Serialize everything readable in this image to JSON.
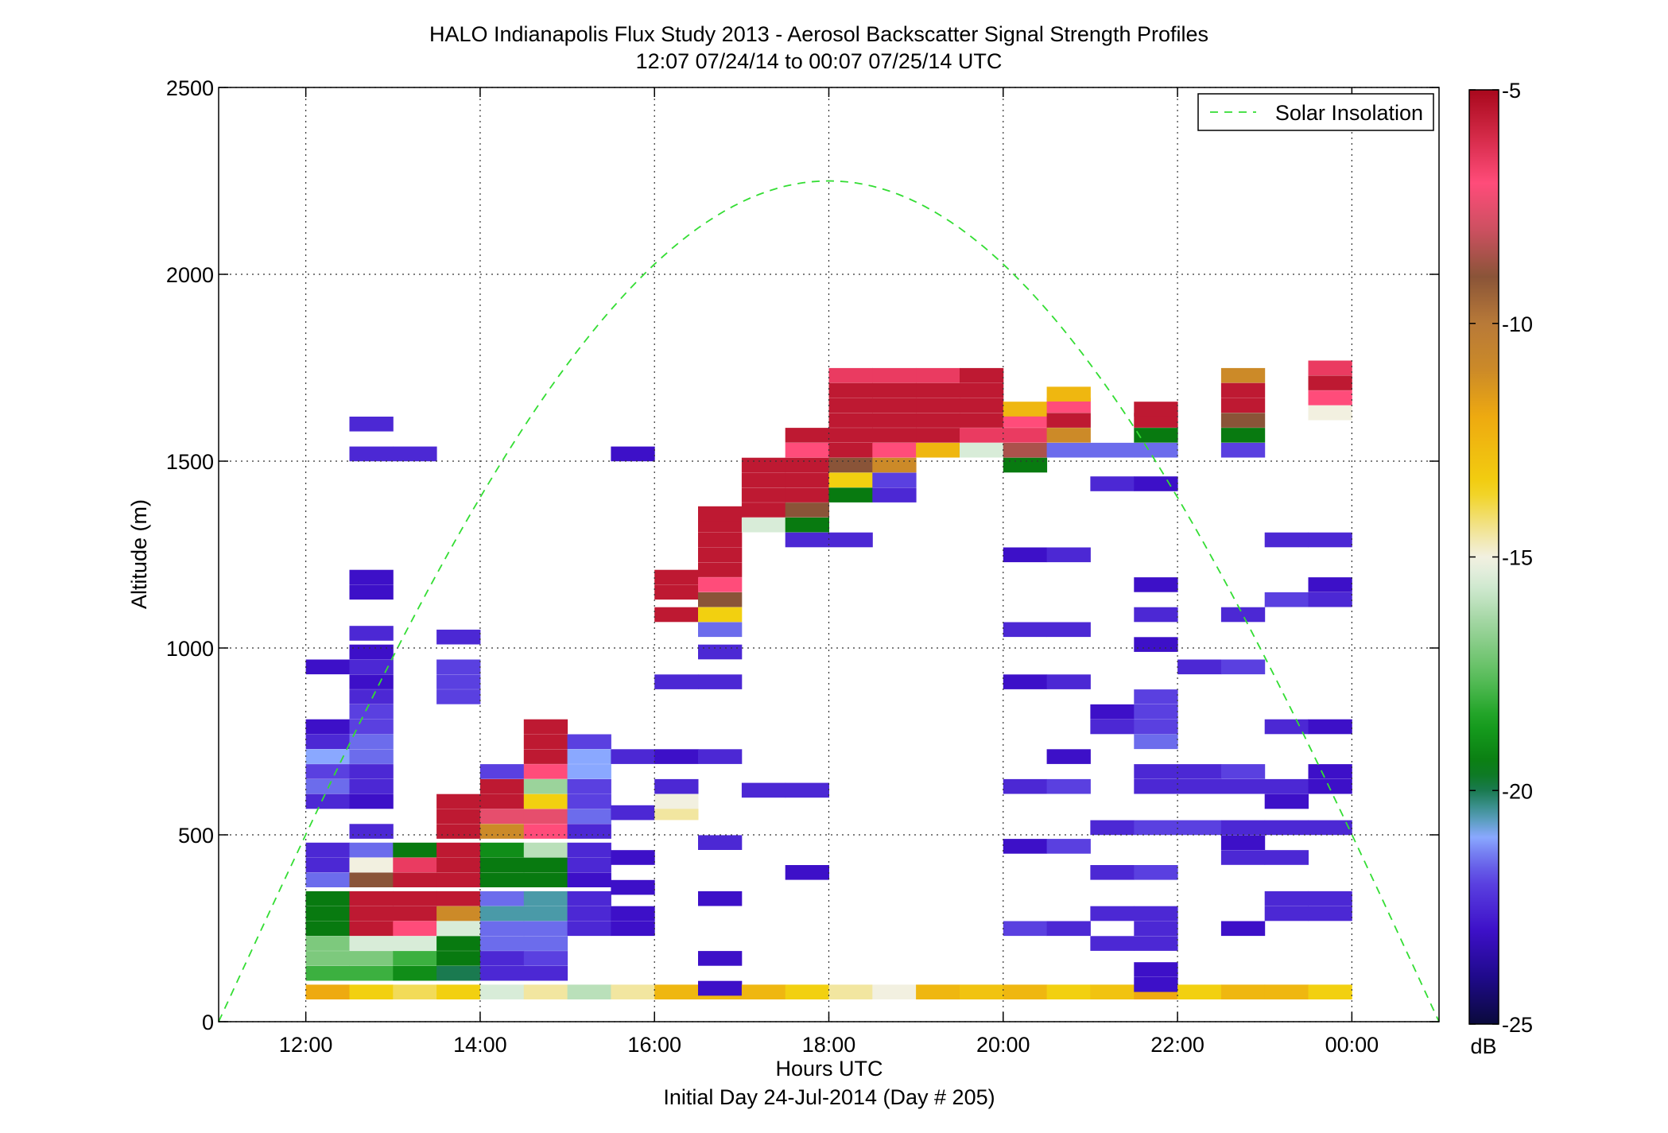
{
  "chart_data": {
    "type": "heatmap",
    "title": "HALO Indianapolis Flux Study 2013 - Aerosol Backscatter Signal Strength Profiles",
    "subtitle": "12:07 07/24/14 to 00:07 07/25/14  UTC",
    "xlabel": "Hours UTC",
    "xlabel2": "Initial Day 24-Jul-2014 (Day # 205)",
    "ylabel": "Altitude (m)",
    "xlim": [
      11,
      25
    ],
    "ylim": [
      0,
      2500
    ],
    "x_ticks": [
      12,
      14,
      16,
      18,
      20,
      22,
      24
    ],
    "x_tick_labels": [
      "12:00",
      "14:00",
      "16:00",
      "18:00",
      "20:00",
      "22:00",
      "00:00"
    ],
    "y_ticks": [
      0,
      500,
      1000,
      1500,
      2000,
      2500
    ],
    "y_tick_labels": [
      "0",
      "500",
      "1000",
      "1500",
      "2000",
      "2500"
    ],
    "grid": true,
    "legend": {
      "label": "Solar Insolation",
      "placement": "top-right",
      "color": "#33dd33"
    },
    "colorbar": {
      "label": "dB",
      "range": [
        -25,
        -5
      ],
      "ticks": [
        -5,
        -10,
        -15,
        -20,
        -25
      ],
      "tick_labels": [
        "-5",
        "-10",
        "-15",
        "-20",
        "-25"
      ]
    },
    "time_bins": {
      "start": 12.0,
      "step": 0.5
    },
    "altitude_bin_m": 38.5,
    "cells": [
      [
        0,
        80,
        -12
      ],
      [
        0,
        130,
        -18
      ],
      [
        0,
        170,
        -17
      ],
      [
        0,
        210,
        -17
      ],
      [
        0,
        250,
        -19.5
      ],
      [
        0,
        290,
        -19.5
      ],
      [
        0,
        330,
        -19.5
      ],
      [
        0,
        380,
        -21.5
      ],
      [
        0,
        420,
        -22.5
      ],
      [
        0,
        460,
        -22.5
      ],
      [
        0,
        590,
        -22.5
      ],
      [
        0,
        630,
        -21.5
      ],
      [
        0,
        670,
        -22
      ],
      [
        0,
        710,
        -21
      ],
      [
        0,
        750,
        -22.5
      ],
      [
        0,
        790,
        -23
      ],
      [
        0,
        950,
        -23
      ],
      [
        1,
        80,
        -13.5
      ],
      [
        1,
        130,
        -18
      ],
      [
        1,
        170,
        -17
      ],
      [
        1,
        210,
        -15.5
      ],
      [
        1,
        250,
        -5.5
      ],
      [
        1,
        290,
        -5.5
      ],
      [
        1,
        330,
        -5.5
      ],
      [
        1,
        380,
        -9
      ],
      [
        1,
        420,
        -15
      ],
      [
        1,
        460,
        -21.5
      ],
      [
        1,
        510,
        -22.5
      ],
      [
        1,
        590,
        -23
      ],
      [
        1,
        630,
        -22.5
      ],
      [
        1,
        670,
        -22.5
      ],
      [
        1,
        710,
        -21.5
      ],
      [
        1,
        750,
        -21.5
      ],
      [
        1,
        790,
        -22
      ],
      [
        1,
        830,
        -22
      ],
      [
        1,
        870,
        -22.5
      ],
      [
        1,
        910,
        -23
      ],
      [
        1,
        950,
        -22.5
      ],
      [
        1,
        990,
        -23
      ],
      [
        1,
        1040,
        -22.5
      ],
      [
        1,
        1150,
        -23
      ],
      [
        1,
        1190,
        -23
      ],
      [
        1,
        1520,
        -22.5
      ],
      [
        1,
        1600,
        -22.5
      ],
      [
        2,
        80,
        -14
      ],
      [
        2,
        130,
        -19
      ],
      [
        2,
        170,
        -18
      ],
      [
        2,
        210,
        -15.5
      ],
      [
        2,
        250,
        -7
      ],
      [
        2,
        290,
        -5.5
      ],
      [
        2,
        330,
        -5.5
      ],
      [
        2,
        380,
        -5.5
      ],
      [
        2,
        420,
        -6.5
      ],
      [
        2,
        460,
        -19.5
      ],
      [
        2,
        1520,
        -22.5
      ],
      [
        3,
        80,
        -13.5
      ],
      [
        3,
        130,
        -20
      ],
      [
        3,
        170,
        -19.5
      ],
      [
        3,
        210,
        -19.5
      ],
      [
        3,
        250,
        -15.5
      ],
      [
        3,
        290,
        -11
      ],
      [
        3,
        330,
        -5.5
      ],
      [
        3,
        380,
        -5.5
      ],
      [
        3,
        420,
        -5.5
      ],
      [
        3,
        460,
        -5.5
      ],
      [
        3,
        510,
        -5.5
      ],
      [
        3,
        550,
        -5.5
      ],
      [
        3,
        590,
        -5.5
      ],
      [
        3,
        870,
        -22
      ],
      [
        3,
        910,
        -22
      ],
      [
        3,
        950,
        -22
      ],
      [
        3,
        1030,
        -22.5
      ],
      [
        4,
        80,
        -15.5
      ],
      [
        4,
        130,
        -22.5
      ],
      [
        4,
        170,
        -22.5
      ],
      [
        4,
        210,
        -21.5
      ],
      [
        4,
        250,
        -21.5
      ],
      [
        4,
        290,
        -20.5
      ],
      [
        4,
        330,
        -21.5
      ],
      [
        4,
        380,
        -19.5
      ],
      [
        4,
        420,
        -19.5
      ],
      [
        4,
        460,
        -19
      ],
      [
        4,
        510,
        -11
      ],
      [
        4,
        550,
        -7.5
      ],
      [
        4,
        590,
        -5.5
      ],
      [
        4,
        630,
        -5.5
      ],
      [
        4,
        670,
        -22
      ],
      [
        5,
        80,
        -14.5
      ],
      [
        5,
        130,
        -22.5
      ],
      [
        5,
        170,
        -22
      ],
      [
        5,
        210,
        -21.5
      ],
      [
        5,
        250,
        -21.5
      ],
      [
        5,
        290,
        -20.5
      ],
      [
        5,
        330,
        -20.5
      ],
      [
        5,
        380,
        -19.5
      ],
      [
        5,
        420,
        -19.5
      ],
      [
        5,
        460,
        -16
      ],
      [
        5,
        510,
        -7
      ],
      [
        5,
        550,
        -7.5
      ],
      [
        5,
        590,
        -13.5
      ],
      [
        5,
        630,
        -16.5
      ],
      [
        5,
        670,
        -7
      ],
      [
        5,
        710,
        -5.5
      ],
      [
        5,
        750,
        -5.5
      ],
      [
        5,
        790,
        -5.5
      ],
      [
        6,
        80,
        -16
      ],
      [
        6,
        250,
        -22.5
      ],
      [
        6,
        290,
        -22.5
      ],
      [
        6,
        330,
        -22.5
      ],
      [
        6,
        380,
        -23
      ],
      [
        6,
        420,
        -22.5
      ],
      [
        6,
        460,
        -22.5
      ],
      [
        6,
        510,
        -22.5
      ],
      [
        6,
        550,
        -21.5
      ],
      [
        6,
        590,
        -22
      ],
      [
        6,
        630,
        -22
      ],
      [
        6,
        670,
        -21
      ],
      [
        6,
        710,
        -21
      ],
      [
        6,
        750,
        -22
      ],
      [
        7,
        80,
        -14.5
      ],
      [
        7,
        250,
        -23
      ],
      [
        7,
        290,
        -23
      ],
      [
        7,
        360,
        -23
      ],
      [
        7,
        440,
        -23
      ],
      [
        7,
        560,
        -22.5
      ],
      [
        7,
        710,
        -22.5
      ],
      [
        7,
        1520,
        -23
      ],
      [
        8,
        80,
        -12.5
      ],
      [
        8,
        560,
        -14.5
      ],
      [
        8,
        590,
        -15
      ],
      [
        8,
        630,
        -22.5
      ],
      [
        8,
        710,
        -23
      ],
      [
        8,
        910,
        -22.5
      ],
      [
        8,
        1090,
        -5.5
      ],
      [
        8,
        1150,
        -5.5
      ],
      [
        8,
        1190,
        -5.5
      ],
      [
        9,
        80,
        -12.5
      ],
      [
        9,
        90,
        -23
      ],
      [
        9,
        170,
        -23
      ],
      [
        9,
        330,
        -23
      ],
      [
        9,
        480,
        -22.5
      ],
      [
        9,
        710,
        -22.5
      ],
      [
        9,
        910,
        -22.5
      ],
      [
        9,
        990,
        -22.5
      ],
      [
        9,
        1050,
        -21.5
      ],
      [
        9,
        1090,
        -13.5
      ],
      [
        9,
        1130,
        -9
      ],
      [
        9,
        1170,
        -7
      ],
      [
        9,
        1210,
        -5.5
      ],
      [
        9,
        1250,
        -5.5
      ],
      [
        9,
        1290,
        -5.5
      ],
      [
        9,
        1330,
        -5.5
      ],
      [
        9,
        1360,
        -5.5
      ],
      [
        10,
        80,
        -12.5
      ],
      [
        10,
        1330,
        -15.5
      ],
      [
        10,
        1370,
        -5.5
      ],
      [
        10,
        1410,
        -5.5
      ],
      [
        10,
        1450,
        -5.5
      ],
      [
        10,
        1490,
        -5.5
      ],
      [
        10,
        620,
        -22.5
      ],
      [
        11,
        80,
        -13.5
      ],
      [
        11,
        400,
        -23
      ],
      [
        11,
        620,
        -22.5
      ],
      [
        11,
        1290,
        -22.5
      ],
      [
        11,
        1330,
        -19.5
      ],
      [
        11,
        1370,
        -9
      ],
      [
        11,
        1410,
        -5.5
      ],
      [
        11,
        1450,
        -5.5
      ],
      [
        11,
        1490,
        -5.5
      ],
      [
        11,
        1530,
        -7
      ],
      [
        11,
        1570,
        -5.5
      ],
      [
        12,
        80,
        -14.5
      ],
      [
        12,
        1290,
        -22.5
      ],
      [
        12,
        1410,
        -19.5
      ],
      [
        12,
        1450,
        -13.5
      ],
      [
        12,
        1490,
        -9
      ],
      [
        12,
        1530,
        -5.5
      ],
      [
        12,
        1570,
        -5.5
      ],
      [
        12,
        1610,
        -5.5
      ],
      [
        12,
        1650,
        -5.5
      ],
      [
        12,
        1690,
        -5.5
      ],
      [
        12,
        1730,
        -6.5
      ],
      [
        13,
        80,
        -15
      ],
      [
        13,
        1410,
        -22.5
      ],
      [
        13,
        1450,
        -22
      ],
      [
        13,
        1490,
        -11
      ],
      [
        13,
        1530,
        -7
      ],
      [
        13,
        1570,
        -5.5
      ],
      [
        13,
        1610,
        -5.5
      ],
      [
        13,
        1650,
        -5.5
      ],
      [
        13,
        1690,
        -5.5
      ],
      [
        13,
        1730,
        -6.5
      ],
      [
        14,
        80,
        -12.5
      ],
      [
        14,
        1530,
        -12.5
      ],
      [
        14,
        1570,
        -5.5
      ],
      [
        14,
        1610,
        -5.5
      ],
      [
        14,
        1650,
        -5.5
      ],
      [
        14,
        1690,
        -5.5
      ],
      [
        14,
        1730,
        -6.5
      ],
      [
        15,
        80,
        -13
      ],
      [
        15,
        1530,
        -15.5
      ],
      [
        15,
        1570,
        -6.5
      ],
      [
        15,
        1610,
        -5.5
      ],
      [
        15,
        1650,
        -5.5
      ],
      [
        15,
        1690,
        -5.5
      ],
      [
        15,
        1730,
        -5.5
      ],
      [
        16,
        80,
        -12.5
      ],
      [
        16,
        250,
        -22
      ],
      [
        16,
        470,
        -23
      ],
      [
        16,
        630,
        -22.5
      ],
      [
        16,
        910,
        -23
      ],
      [
        16,
        1050,
        -22.5
      ],
      [
        16,
        1250,
        -23
      ],
      [
        16,
        1490,
        -19.5
      ],
      [
        16,
        1530,
        -8.5
      ],
      [
        16,
        1570,
        -6.5
      ],
      [
        16,
        1610,
        -7
      ],
      [
        16,
        1640,
        -12.5
      ],
      [
        17,
        80,
        -13.5
      ],
      [
        17,
        250,
        -22.5
      ],
      [
        17,
        470,
        -22
      ],
      [
        17,
        630,
        -22
      ],
      [
        17,
        710,
        -23
      ],
      [
        17,
        910,
        -22.5
      ],
      [
        17,
        1050,
        -22.5
      ],
      [
        17,
        1250,
        -22.5
      ],
      [
        17,
        1530,
        -21.5
      ],
      [
        17,
        1570,
        -11
      ],
      [
        17,
        1610,
        -5.5
      ],
      [
        17,
        1650,
        -7
      ],
      [
        17,
        1680,
        -12.5
      ],
      [
        18,
        80,
        -13
      ],
      [
        18,
        210,
        -22.5
      ],
      [
        18,
        290,
        -22.5
      ],
      [
        18,
        400,
        -22.5
      ],
      [
        18,
        520,
        -22.5
      ],
      [
        18,
        790,
        -22.5
      ],
      [
        18,
        830,
        -23
      ],
      [
        18,
        1440,
        -22.5
      ],
      [
        18,
        1530,
        -21.5
      ],
      [
        19,
        80,
        -12
      ],
      [
        19,
        100,
        -23
      ],
      [
        19,
        140,
        -23
      ],
      [
        19,
        210,
        -22.5
      ],
      [
        19,
        250,
        -22.5
      ],
      [
        19,
        290,
        -22.5
      ],
      [
        19,
        400,
        -22
      ],
      [
        19,
        520,
        -22
      ],
      [
        19,
        630,
        -22.5
      ],
      [
        19,
        670,
        -22.5
      ],
      [
        19,
        750,
        -21.5
      ],
      [
        19,
        790,
        -22
      ],
      [
        19,
        830,
        -22
      ],
      [
        19,
        870,
        -22
      ],
      [
        19,
        1010,
        -23
      ],
      [
        19,
        1090,
        -22.5
      ],
      [
        19,
        1170,
        -23
      ],
      [
        19,
        1440,
        -23
      ],
      [
        19,
        1530,
        -21.5
      ],
      [
        19,
        1570,
        -19.5
      ],
      [
        19,
        1610,
        -5.5
      ],
      [
        19,
        1640,
        -5.5
      ],
      [
        20,
        80,
        -13.5
      ],
      [
        20,
        520,
        -22
      ],
      [
        20,
        630,
        -22.5
      ],
      [
        20,
        670,
        -22.5
      ],
      [
        20,
        950,
        -22.5
      ],
      [
        21,
        80,
        -12.5
      ],
      [
        21,
        250,
        -23
      ],
      [
        21,
        440,
        -22.5
      ],
      [
        21,
        480,
        -23
      ],
      [
        21,
        520,
        -22.5
      ],
      [
        21,
        630,
        -22.5
      ],
      [
        21,
        670,
        -22
      ],
      [
        21,
        950,
        -22
      ],
      [
        21,
        1090,
        -22.5
      ],
      [
        21,
        1530,
        -22
      ],
      [
        21,
        1570,
        -19.5
      ],
      [
        21,
        1610,
        -9
      ],
      [
        21,
        1650,
        -5.5
      ],
      [
        21,
        1690,
        -5.5
      ],
      [
        21,
        1730,
        -11
      ],
      [
        22,
        80,
        -12.5
      ],
      [
        22,
        290,
        -22.5
      ],
      [
        22,
        330,
        -22.5
      ],
      [
        22,
        440,
        -22.5
      ],
      [
        22,
        520,
        -22.5
      ],
      [
        22,
        590,
        -23
      ],
      [
        22,
        630,
        -22.5
      ],
      [
        22,
        790,
        -22.5
      ],
      [
        22,
        1130,
        -22
      ],
      [
        22,
        1290,
        -22.5
      ],
      [
        23,
        80,
        -13.5
      ],
      [
        23,
        290,
        -22.5
      ],
      [
        23,
        330,
        -22.5
      ],
      [
        23,
        520,
        -22.5
      ],
      [
        23,
        630,
        -23
      ],
      [
        23,
        670,
        -23
      ],
      [
        23,
        790,
        -23
      ],
      [
        23,
        1130,
        -22.5
      ],
      [
        23,
        1170,
        -23
      ],
      [
        23,
        1290,
        -22.5
      ],
      [
        23,
        1630,
        -15
      ],
      [
        23,
        1670,
        -7
      ],
      [
        23,
        1710,
        -5.5
      ],
      [
        23,
        1750,
        -6.5
      ]
    ],
    "solar_insolation_curve": {
      "peak_hour": 17.97,
      "peak_altitude": 2250,
      "zero_hours": [
        11.0,
        25.0
      ]
    }
  }
}
